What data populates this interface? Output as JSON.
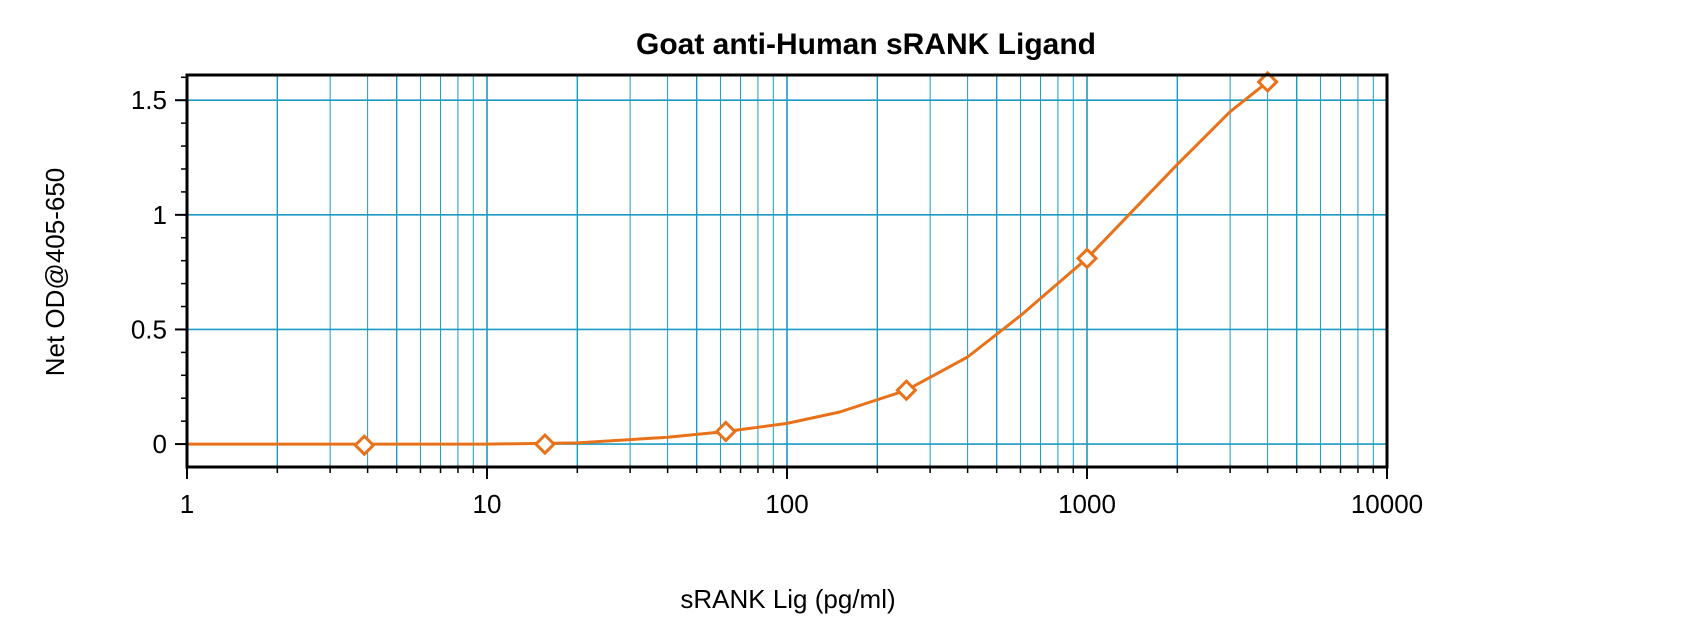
{
  "chart_data": {
    "type": "line",
    "title": "Goat anti-Human sRANK Ligand",
    "xlabel": "sRANK Lig (pg/ml)",
    "ylabel": "Net OD@405-650",
    "x_scale": "log",
    "xlim": [
      1,
      10000
    ],
    "ylim": [
      -0.1,
      1.61
    ],
    "x_ticks": [
      "1",
      "10",
      "100",
      "1000",
      "10000"
    ],
    "y_ticks": [
      "0",
      "0.5",
      "1",
      "1.5"
    ],
    "grid": true,
    "series": [
      {
        "marker": "diamond",
        "x": [
          3.9,
          15.6,
          62.5,
          250,
          1000,
          4000
        ],
        "y": [
          -0.005,
          0.0,
          0.055,
          0.235,
          0.81,
          1.58
        ]
      }
    ],
    "fit_curve": {
      "x": [
        1,
        3,
        10,
        20,
        40,
        62.5,
        100,
        150,
        250,
        400,
        600,
        1000,
        1500,
        2000,
        3000,
        4000
      ],
      "y": [
        0.0,
        0.0,
        0.0,
        0.005,
        0.03,
        0.055,
        0.09,
        0.14,
        0.235,
        0.38,
        0.56,
        0.81,
        1.05,
        1.22,
        1.45,
        1.58
      ]
    },
    "colors": {
      "series": "#E8711A",
      "grid": "#1A9BC4",
      "axis": "#000000"
    }
  }
}
